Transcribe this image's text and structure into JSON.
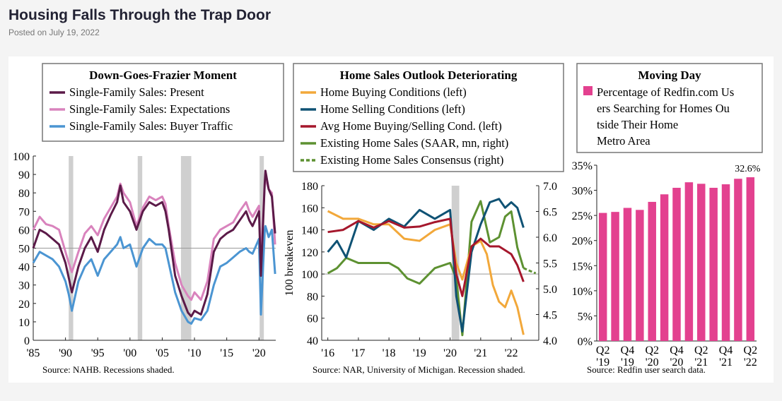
{
  "page": {
    "title": "Housing Falls Through the Trap Door",
    "posted": "Posted on July 19, 2022"
  },
  "colors": {
    "present": "#5b1a48",
    "expect": "#d983bd",
    "traffic": "#4b95d2",
    "buying": "#f2a83a",
    "selling": "#0f5274",
    "avg": "#a5172c",
    "existing": "#5d9131",
    "bars": "#e3418f",
    "recession": "#cfcfcf"
  },
  "chart_data": [
    {
      "type": "line",
      "title": "Down-Goes-Frazier Moment",
      "legend": [
        "Single-Family Sales: Present",
        "Single-Family Sales: Expectations",
        "Single-Family Sales: Buyer Traffic"
      ],
      "ylim": [
        0,
        100
      ],
      "yticks": [
        "0",
        "10",
        "20",
        "30",
        "40",
        "50",
        "60",
        "70",
        "80",
        "90",
        "100"
      ],
      "xticks": [
        "'85",
        "'90",
        "'95",
        "'00",
        "'05",
        "'10",
        "'15",
        "'20"
      ],
      "xrange": [
        1985,
        2022.6
      ],
      "recessions": [
        [
          1990.5,
          1991.2
        ],
        [
          2001.2,
          2001.9
        ],
        [
          2007.9,
          2009.5
        ],
        [
          2020.1,
          2020.4
        ]
      ],
      "reference_line": 50,
      "series": [
        {
          "name": "Single-Family Sales: Present",
          "x": [
            1985,
            1986,
            1987,
            1988,
            1989,
            1990,
            1990.5,
            1991,
            1992,
            1993,
            1994,
            1995,
            1996,
            1997,
            1998,
            1998.5,
            1999,
            2000,
            2001,
            2002,
            2003,
            2004,
            2005,
            2005.5,
            2006,
            2007,
            2008,
            2009,
            2009.5,
            2010,
            2011,
            2012,
            2013,
            2014,
            2015,
            2016,
            2017,
            2018,
            2018.5,
            2019,
            2020,
            2020.3,
            2020.9,
            2021,
            2021.5,
            2022,
            2022.5
          ],
          "y": [
            50,
            60,
            58,
            55,
            52,
            42,
            34,
            26,
            40,
            50,
            56,
            48,
            60,
            68,
            75,
            84,
            75,
            70,
            60,
            70,
            75,
            73,
            75,
            70,
            60,
            35,
            24,
            15,
            13,
            16,
            14,
            25,
            48,
            55,
            58,
            60,
            65,
            70,
            65,
            62,
            70,
            35,
            86,
            92,
            82,
            78,
            58
          ]
        },
        {
          "name": "Single-Family Sales: Expectations",
          "x": [
            1985,
            1986,
            1987,
            1988,
            1989,
            1990,
            1990.5,
            1991,
            1992,
            1993,
            1994,
            1995,
            1996,
            1997,
            1998,
            1998.5,
            1999,
            2000,
            2001,
            2002,
            2003,
            2004,
            2005,
            2005.5,
            2006,
            2007,
            2008,
            2009,
            2009.5,
            2010,
            2011,
            2012,
            2013,
            2014,
            2015,
            2016,
            2017,
            2018,
            2018.5,
            2019,
            2020,
            2020.3,
            2020.9,
            2021,
            2021.5,
            2022,
            2022.5
          ],
          "y": [
            60,
            67,
            63,
            62,
            60,
            48,
            42,
            37,
            48,
            58,
            62,
            57,
            66,
            72,
            78,
            85,
            80,
            75,
            62,
            72,
            78,
            76,
            78,
            74,
            62,
            42,
            30,
            24,
            22,
            26,
            22,
            32,
            55,
            60,
            62,
            64,
            70,
            75,
            70,
            67,
            73,
            42,
            86,
            88,
            82,
            80,
            52
          ]
        },
        {
          "name": "Single-Family Sales: Buyer Traffic",
          "x": [
            1985,
            1986,
            1987,
            1988,
            1989,
            1990,
            1990.5,
            1991,
            1992,
            1993,
            1994,
            1995,
            1996,
            1997,
            1998,
            1998.5,
            1999,
            2000,
            2001,
            2002,
            2003,
            2004,
            2005,
            2005.5,
            2006,
            2007,
            2008,
            2009,
            2009.5,
            2010,
            2011,
            2012,
            2013,
            2014,
            2015,
            2016,
            2017,
            2018,
            2018.5,
            2019,
            2020,
            2020.3,
            2020.9,
            2021,
            2021.5,
            2022,
            2022.5
          ],
          "y": [
            42,
            48,
            46,
            44,
            40,
            32,
            25,
            16,
            32,
            40,
            44,
            35,
            44,
            48,
            52,
            56,
            50,
            52,
            40,
            50,
            55,
            52,
            52,
            50,
            42,
            26,
            16,
            10,
            9,
            12,
            11,
            16,
            30,
            40,
            42,
            45,
            48,
            50,
            48,
            47,
            55,
            14,
            60,
            62,
            56,
            60,
            36
          ]
        }
      ]
    },
    {
      "type": "line",
      "title": "Home Sales Outlook Deteriorating",
      "legend": [
        "Home Buying Conditions (left)",
        "Home Selling Conditions (left)",
        "Avg Home Buying/Selling Cond. (left)",
        "Existing Home Sales (SAAR, mn, right)",
        "Existing Home Sales Consensus (right)"
      ],
      "ylabel": "100 breakeven",
      "ylim": [
        40,
        180
      ],
      "yticks": [
        "40",
        "60",
        "80",
        "100",
        "120",
        "140",
        "160",
        "180"
      ],
      "y2lim": [
        4.0,
        7.0
      ],
      "y2ticks": [
        "4.0",
        "4.5",
        "5.0",
        "5.5",
        "6.0",
        "6.5",
        "7.0"
      ],
      "xticks": [
        "'16",
        "'17",
        "'18",
        "'19",
        "'20",
        "'21",
        "'22"
      ],
      "xrange": [
        2015.8,
        2022.9
      ],
      "recessions": [
        [
          2020.05,
          2020.3
        ]
      ],
      "reference_line": 100,
      "series": [
        {
          "name": "Home Buying Conditions (left)",
          "x": [
            2016,
            2016.5,
            2017,
            2017.5,
            2018,
            2018.5,
            2019,
            2019.5,
            2020,
            2020.2,
            2020.4,
            2020.7,
            2021,
            2021.2,
            2021.4,
            2021.6,
            2021.8,
            2022,
            2022.2,
            2022.4
          ],
          "y": [
            157,
            150,
            150,
            145,
            145,
            132,
            130,
            140,
            145,
            110,
            95,
            125,
            130,
            118,
            90,
            75,
            70,
            85,
            70,
            45
          ]
        },
        {
          "name": "Home Selling Conditions (left)",
          "x": [
            2016,
            2016.3,
            2016.6,
            2017,
            2017.5,
            2018,
            2018.5,
            2019,
            2019.5,
            2020,
            2020.2,
            2020.4,
            2020.7,
            2021,
            2021.3,
            2021.6,
            2021.8,
            2022,
            2022.2,
            2022.4
          ],
          "y": [
            120,
            130,
            115,
            148,
            140,
            150,
            143,
            158,
            150,
            158,
            80,
            48,
            120,
            145,
            165,
            168,
            160,
            165,
            160,
            142
          ]
        },
        {
          "name": "Avg Home Buying/Selling Cond. (left)",
          "x": [
            2016,
            2016.5,
            2017,
            2017.5,
            2018,
            2018.5,
            2019,
            2019.5,
            2020,
            2020.2,
            2020.4,
            2020.7,
            2021,
            2021.3,
            2021.6,
            2022,
            2022.2,
            2022.4
          ],
          "y": [
            138,
            140,
            148,
            142,
            148,
            142,
            143,
            147,
            150,
            100,
            80,
            125,
            132,
            125,
            125,
            118,
            108,
            93
          ]
        },
        {
          "name": "Existing Home Sales (SAAR, mn, right)",
          "x": [
            2016,
            2016.3,
            2016.6,
            2017,
            2017.5,
            2018,
            2018.3,
            2018.6,
            2019,
            2019.5,
            2020,
            2020.2,
            2020.4,
            2020.7,
            2021,
            2021.3,
            2021.6,
            2021.8,
            2022,
            2022.2,
            2022.4
          ],
          "y": [
            5.3,
            5.4,
            5.6,
            5.5,
            5.5,
            5.5,
            5.4,
            5.2,
            5.1,
            5.4,
            5.5,
            5.2,
            4.1,
            6.3,
            6.7,
            5.9,
            6.0,
            6.4,
            6.5,
            5.8,
            5.4
          ]
        },
        {
          "name": "Existing Home Sales Consensus (right)",
          "x": [
            2022.4,
            2022.6,
            2022.8
          ],
          "y": [
            5.4,
            5.35,
            5.3
          ]
        }
      ]
    },
    {
      "type": "bar",
      "title": "Moving Day",
      "legend": [
        "Percentage of Redfin.com Users Searching for Homes Outside Their Home Metro Area"
      ],
      "ylim": [
        0,
        35
      ],
      "yticks": [
        "0%",
        "5%",
        "10%",
        "15%",
        "20%",
        "25%",
        "30%",
        "35%"
      ],
      "categories": [
        "Q2 '19",
        "",
        "Q4 '19",
        "",
        "Q2 '20",
        "",
        "Q4 '20",
        "",
        "Q2 '21",
        "",
        "Q4 '21",
        "",
        "Q2 '22"
      ],
      "values": [
        25.5,
        25.7,
        26.5,
        26.1,
        27.7,
        29.2,
        30.5,
        31.6,
        31.3,
        30.5,
        31.2,
        32.3,
        32.6
      ],
      "data_labels": [
        "",
        "",
        "",
        "",
        "",
        "",
        "",
        "",
        "",
        "",
        "",
        "",
        "32.6%"
      ]
    }
  ],
  "sources": [
    "Source: NAHB. Recessions shaded.",
    "Source: NAR, University of Michigan. Recession shaded.",
    "Source: Redfin user search data."
  ]
}
